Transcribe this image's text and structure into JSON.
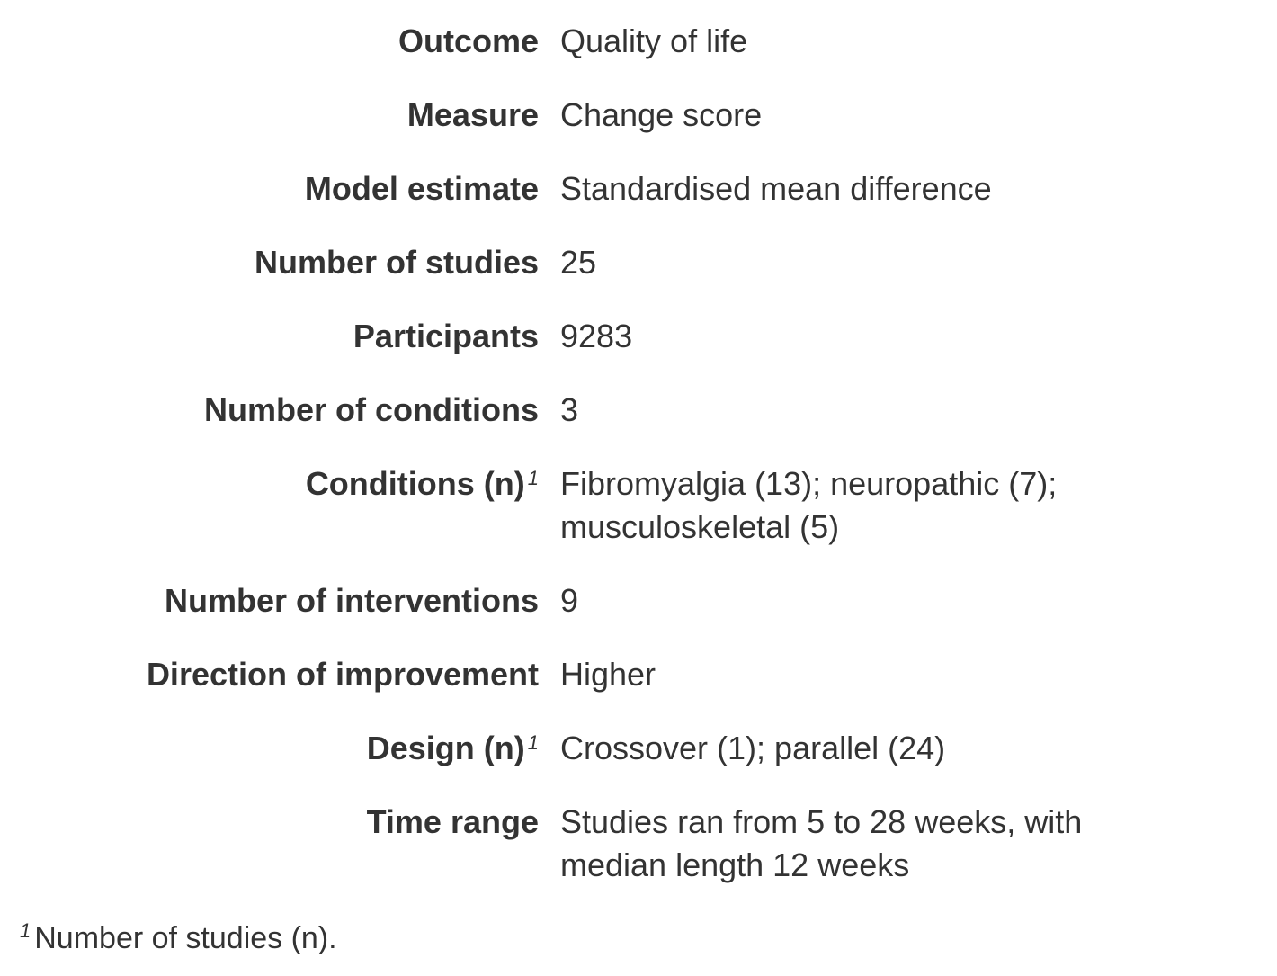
{
  "rows": [
    {
      "label": "Outcome",
      "value": "Quality of life"
    },
    {
      "label": "Measure",
      "value": "Change score"
    },
    {
      "label": "Model estimate",
      "value": "Standardised mean difference"
    },
    {
      "label": "Number of studies",
      "value": "25"
    },
    {
      "label": "Participants",
      "value": "9283"
    },
    {
      "label": "Number of conditions",
      "value": "3"
    },
    {
      "label": "Conditions (n)",
      "footnote_mark": "1",
      "value": "Fibromyalgia (13); neuropathic (7); musculoskeletal (5)"
    },
    {
      "label": "Number of interventions",
      "value": "9"
    },
    {
      "label": "Direction of improvement",
      "value": "Higher"
    },
    {
      "label": "Design (n)",
      "footnote_mark": "1",
      "value": "Crossover (1); parallel (24)"
    },
    {
      "label": "Time range",
      "value": "Studies ran from 5 to 28 weeks, with median length 12 weeks"
    }
  ],
  "footnote": {
    "mark": "1",
    "text": "Number of studies (n)."
  }
}
